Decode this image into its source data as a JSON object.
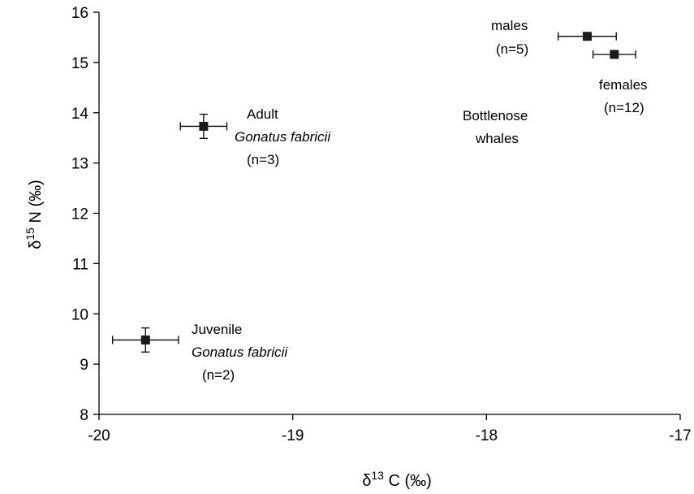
{
  "chart_data": {
    "type": "scatter",
    "xlabel": {
      "prefix": "δ",
      "sup": "13",
      "suffix": " C (‰)"
    },
    "ylabel": {
      "prefix": "δ",
      "sup": "15",
      "suffix": " N (‰)"
    },
    "xlim": [
      -20,
      -17
    ],
    "ylim": [
      8,
      16
    ],
    "xticks": [
      -20,
      -19,
      -18,
      -17
    ],
    "xtick_labels": [
      "-20",
      "-19",
      "-18",
      "-17"
    ],
    "yticks": [
      8,
      9,
      10,
      11,
      12,
      13,
      14,
      15,
      16
    ],
    "ytick_labels": [
      "8",
      "9",
      "10",
      "11",
      "12",
      "13",
      "14",
      "15",
      "16"
    ],
    "grid": false,
    "points": [
      {
        "id": "juvenile-gonatus",
        "x": -19.76,
        "y": 9.48,
        "xerr": 0.17,
        "yerr": 0.24
      },
      {
        "id": "adult-gonatus",
        "x": -19.46,
        "y": 13.73,
        "xerr": 0.12,
        "yerr": 0.24
      },
      {
        "id": "males",
        "x": -17.48,
        "y": 15.52,
        "xerr": 0.15,
        "yerr": 0
      },
      {
        "id": "females",
        "x": -17.34,
        "y": 15.16,
        "xerr": 0.11,
        "yerr": 0.06
      }
    ],
    "annotations": [
      {
        "id": "juvenile-line1",
        "text": "Juvenile",
        "italic": false
      },
      {
        "id": "juvenile-line2",
        "text": "Gonatus fabricii",
        "italic": true
      },
      {
        "id": "juvenile-line3",
        "text": "(n=2)",
        "italic": false
      },
      {
        "id": "adult-line1",
        "text": "Adult",
        "italic": false
      },
      {
        "id": "adult-line2",
        "text": "Gonatus fabricii",
        "italic": true
      },
      {
        "id": "adult-line3",
        "text": "(n=3)",
        "italic": false
      },
      {
        "id": "males-line1",
        "text": "males",
        "italic": false
      },
      {
        "id": "males-line2",
        "text": "(n=5)",
        "italic": false
      },
      {
        "id": "females-line1",
        "text": "females",
        "italic": false
      },
      {
        "id": "females-line2",
        "text": "(n=12)",
        "italic": false
      },
      {
        "id": "whales-line1",
        "text": "Bottlenose",
        "italic": false
      },
      {
        "id": "whales-line2",
        "text": "whales",
        "italic": false
      }
    ],
    "marker_color": "#1a1a1a"
  }
}
